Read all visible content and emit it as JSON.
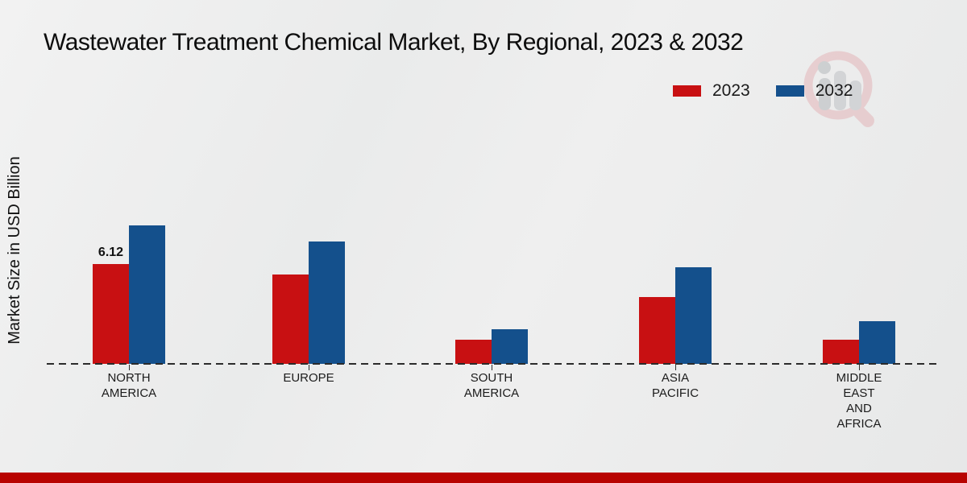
{
  "title": "Wastewater Treatment Chemical Market, By Regional, 2023 & 2032",
  "y_axis_label": "Market Size in USD Billion",
  "legend": [
    {
      "label": "2023",
      "color": "#c81012"
    },
    {
      "label": "2032",
      "color": "#14508c"
    }
  ],
  "footer": {
    "bar_color": "#b80301"
  },
  "watermark_icon": "magnifier-bar-chart-logo",
  "chart_data": {
    "type": "bar",
    "title": "Wastewater Treatment Chemical Market, By Regional, 2023 & 2032",
    "xlabel": "",
    "ylabel": "Market Size in USD Billion",
    "categories": [
      "NORTH AMERICA",
      "EUROPE",
      "SOUTH AMERICA",
      "ASIA PACIFIC",
      "MIDDLE EAST AND AFRICA"
    ],
    "category_label_lines": [
      [
        "NORTH",
        "AMERICA"
      ],
      [
        "EUROPE"
      ],
      [
        "SOUTH",
        "AMERICA"
      ],
      [
        "ASIA",
        "PACIFIC"
      ],
      [
        "MIDDLE",
        "EAST",
        "AND",
        "AFRICA"
      ]
    ],
    "series": [
      {
        "name": "2023",
        "color": "#c81012",
        "values": [
          6.12,
          5.5,
          1.5,
          4.1,
          1.5
        ]
      },
      {
        "name": "2032",
        "color": "#14508c",
        "values": [
          8.5,
          7.5,
          2.1,
          5.9,
          2.6
        ]
      }
    ],
    "data_labels": [
      {
        "series": "2023",
        "category": "NORTH AMERICA",
        "text": "6.12"
      }
    ],
    "baseline_value": 0,
    "axis_style": "dashed zero line only, no y ticks",
    "grid": false,
    "legend_position": "top-right"
  }
}
